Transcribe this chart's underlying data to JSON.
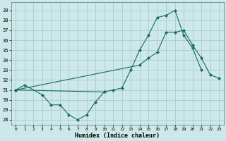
{
  "xlabel": "Humidex (Indice chaleur)",
  "bg_color": "#cce8e8",
  "line_color": "#1a6b5a",
  "grid_color": "#aacccc",
  "xlim": [
    -0.5,
    23.5
  ],
  "ylim": [
    27.5,
    39.8
  ],
  "yticks": [
    28,
    29,
    30,
    31,
    32,
    33,
    34,
    35,
    36,
    37,
    38,
    39
  ],
  "xticks": [
    0,
    1,
    2,
    3,
    4,
    5,
    6,
    7,
    8,
    9,
    10,
    11,
    12,
    13,
    14,
    15,
    16,
    17,
    18,
    19,
    20,
    21,
    22,
    23
  ],
  "line1_x": [
    0,
    1,
    3,
    4,
    5,
    6,
    7,
    8,
    9,
    10
  ],
  "line1_y": [
    31.0,
    31.5,
    30.5,
    29.5,
    29.5,
    28.5,
    28.0,
    28.5,
    29.8,
    30.8
  ],
  "line2_x": [
    0,
    10,
    11,
    12,
    13,
    14,
    15,
    16,
    17,
    18,
    19,
    20,
    21
  ],
  "line2_y": [
    31.0,
    30.8,
    31.0,
    31.2,
    33.0,
    35.0,
    36.5,
    38.3,
    38.5,
    39.0,
    36.5,
    35.2,
    33.0
  ],
  "line3_x": [
    0,
    14,
    15,
    16,
    17,
    18,
    19,
    20,
    21,
    22,
    23
  ],
  "line3_y": [
    31.0,
    33.5,
    34.2,
    34.8,
    36.8,
    36.8,
    37.0,
    35.5,
    34.2,
    32.5,
    32.2
  ]
}
